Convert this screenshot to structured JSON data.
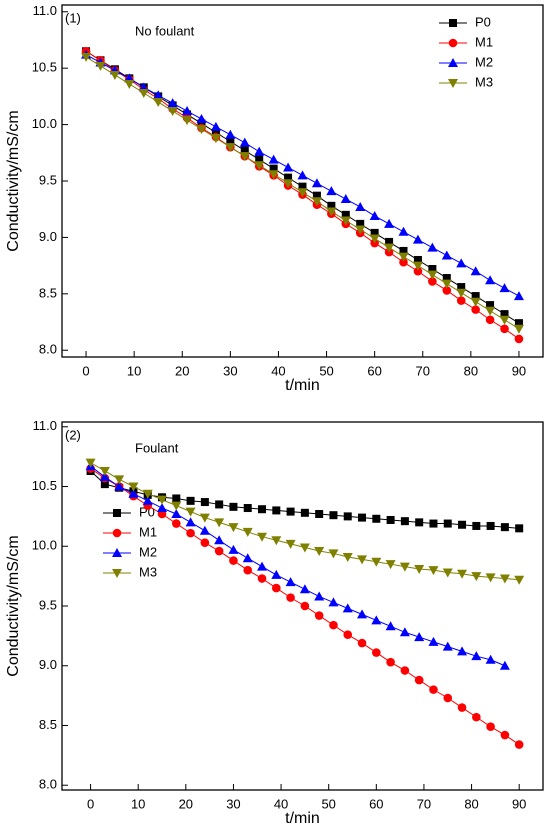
{
  "chart_data": [
    {
      "type": "line",
      "panel_label": "(1)",
      "annotation": "No foulant",
      "xlabel": "t/min",
      "ylabel": "Conductivity/mS/cm",
      "x": [
        0,
        3,
        6,
        9,
        12,
        15,
        18,
        21,
        24,
        27,
        30,
        33,
        36,
        39,
        42,
        45,
        48,
        51,
        54,
        57,
        60,
        63,
        66,
        69,
        72,
        75,
        78,
        81,
        84,
        87,
        90
      ],
      "xlim": [
        -5,
        95
      ],
      "xticks": [
        0,
        10,
        20,
        30,
        40,
        50,
        60,
        70,
        80,
        90
      ],
      "ylim": [
        7.94,
        11.06
      ],
      "yticks": [
        {
          "value": 8,
          "label": "8.0"
        },
        {
          "value": 8.5,
          "label": "8.5"
        },
        {
          "value": 9,
          "label": "9.0"
        },
        {
          "value": 9.5,
          "label": "9.5"
        },
        {
          "value": 10,
          "label": "10.0"
        },
        {
          "value": 10.5,
          "label": "10.5"
        },
        {
          "value": 11,
          "label": "11.0"
        }
      ],
      "legend": "upper right",
      "series": [
        {
          "name": "P0",
          "color": "#000000",
          "marker": "square",
          "values": [
            10.65,
            10.57,
            10.49,
            10.41,
            10.33,
            10.25,
            10.17,
            10.09,
            10.01,
            9.93,
            9.85,
            9.77,
            9.69,
            9.61,
            9.53,
            9.45,
            9.37,
            9.28,
            9.2,
            9.12,
            9.04,
            8.96,
            8.88,
            8.8,
            8.72,
            8.64,
            8.56,
            8.48,
            8.4,
            8.32,
            8.24
          ]
        },
        {
          "name": "M1",
          "color": "#ff0000",
          "marker": "circle",
          "values": [
            10.65,
            10.57,
            10.48,
            10.4,
            10.31,
            10.23,
            10.14,
            10.06,
            9.97,
            9.89,
            9.8,
            9.72,
            9.63,
            9.55,
            9.46,
            9.38,
            9.29,
            9.21,
            9.12,
            9.04,
            8.95,
            8.87,
            8.78,
            8.7,
            8.61,
            8.53,
            8.44,
            8.36,
            8.27,
            8.19,
            8.1
          ]
        },
        {
          "name": "M2",
          "color": "#0000ff",
          "marker": "triangle-up",
          "values": [
            10.62,
            10.55,
            10.48,
            10.41,
            10.33,
            10.26,
            10.19,
            10.12,
            10.05,
            9.98,
            9.91,
            9.84,
            9.76,
            9.69,
            9.62,
            9.55,
            9.48,
            9.41,
            9.34,
            9.27,
            9.19,
            9.12,
            9.05,
            8.98,
            8.91,
            8.84,
            8.77,
            8.7,
            8.62,
            8.55,
            8.48
          ]
        },
        {
          "name": "M3",
          "color": "#808000",
          "marker": "triangle-down",
          "values": [
            10.6,
            10.52,
            10.44,
            10.36,
            10.28,
            10.2,
            10.12,
            10.04,
            9.96,
            9.88,
            9.8,
            9.72,
            9.64,
            9.56,
            9.48,
            9.4,
            9.32,
            9.23,
            9.15,
            9.07,
            8.99,
            8.91,
            8.83,
            8.75,
            8.67,
            8.59,
            8.51,
            8.43,
            8.35,
            8.27,
            8.19
          ]
        }
      ]
    },
    {
      "type": "line",
      "panel_label": "(2)",
      "annotation": "Foulant",
      "xlabel": "t/min",
      "ylabel": "Conductivity/mS/cm",
      "x": [
        0,
        3,
        6,
        9,
        12,
        15,
        18,
        21,
        24,
        27,
        30,
        33,
        36,
        39,
        42,
        45,
        48,
        51,
        54,
        57,
        60,
        63,
        66,
        69,
        72,
        75,
        78,
        81,
        84,
        87,
        90
      ],
      "xlim": [
        -6,
        95
      ],
      "xticks": [
        0,
        10,
        20,
        30,
        40,
        50,
        60,
        70,
        80,
        90
      ],
      "ylim": [
        7.96,
        11.04
      ],
      "yticks": [
        {
          "value": 8,
          "label": "8.0"
        },
        {
          "value": 8.5,
          "label": "8.5"
        },
        {
          "value": 9,
          "label": "9.0"
        },
        {
          "value": 9.5,
          "label": "9.5"
        },
        {
          "value": 10,
          "label": "10.0"
        },
        {
          "value": 10.5,
          "label": "10.5"
        },
        {
          "value": 11,
          "label": "11.0"
        }
      ],
      "legend": "center left",
      "series": [
        {
          "name": "P0",
          "color": "#000000",
          "marker": "square",
          "values": [
            10.63,
            10.52,
            10.49,
            10.46,
            10.43,
            10.41,
            10.4,
            10.38,
            10.37,
            10.35,
            10.33,
            10.32,
            10.31,
            10.3,
            10.29,
            10.28,
            10.27,
            10.26,
            10.25,
            10.24,
            10.23,
            10.22,
            10.21,
            10.2,
            10.19,
            10.19,
            10.18,
            10.17,
            10.17,
            10.16,
            10.15
          ]
        },
        {
          "name": "M1",
          "color": "#ff0000",
          "marker": "circle",
          "values": [
            10.65,
            10.57,
            10.5,
            10.42,
            10.34,
            10.27,
            10.19,
            10.11,
            10.03,
            9.96,
            9.88,
            9.8,
            9.73,
            9.65,
            9.57,
            9.5,
            9.42,
            9.34,
            9.26,
            9.19,
            9.11,
            9.03,
            8.96,
            8.88,
            8.8,
            8.73,
            8.65,
            8.57,
            8.49,
            8.42,
            8.34
          ]
        },
        {
          "name": "M2",
          "color": "#0000ff",
          "marker": "triangle-up",
          "values": [
            10.67,
            10.58,
            10.5,
            10.44,
            10.38,
            10.32,
            10.27,
            10.2,
            10.13,
            10.05,
            9.97,
            9.9,
            9.83,
            9.76,
            9.7,
            9.64,
            9.58,
            9.53,
            9.48,
            9.43,
            9.38,
            9.33,
            9.28,
            9.24,
            9.2,
            9.16,
            9.12,
            9.08,
            9.05,
            9.0,
            null
          ]
        },
        {
          "name": "M3",
          "color": "#808000",
          "marker": "triangle-down",
          "values": [
            10.7,
            10.63,
            10.56,
            10.5,
            10.44,
            10.39,
            10.34,
            10.29,
            10.24,
            10.2,
            10.16,
            10.12,
            10.08,
            10.05,
            10.02,
            9.99,
            9.96,
            9.94,
            9.91,
            9.89,
            9.87,
            9.85,
            9.83,
            9.81,
            9.8,
            9.78,
            9.77,
            9.75,
            9.74,
            9.73,
            9.72
          ]
        }
      ]
    }
  ]
}
